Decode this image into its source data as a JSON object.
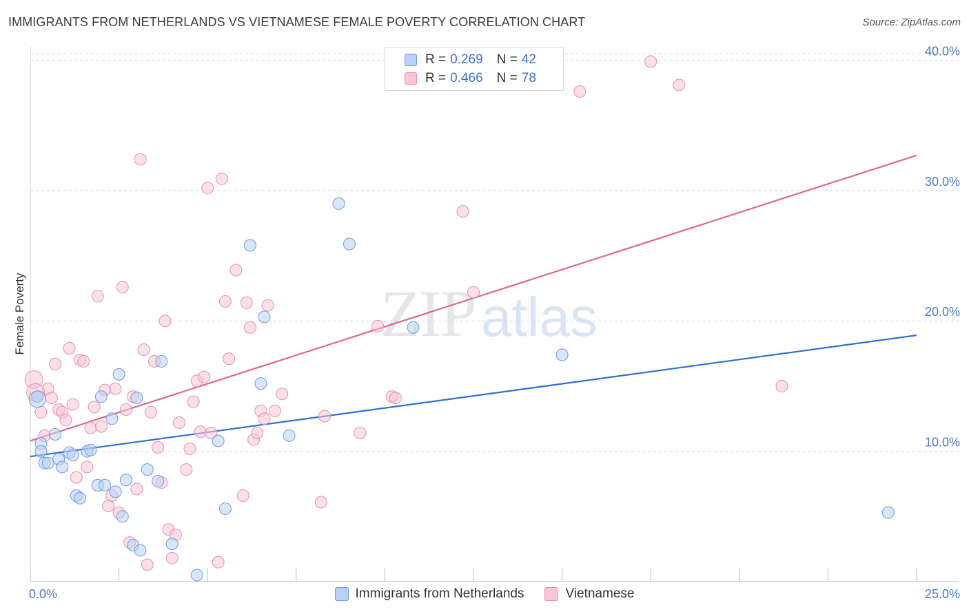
{
  "header": {
    "title": "IMMIGRANTS FROM NETHERLANDS VS VIETNAMESE FEMALE POVERTY CORRELATION CHART",
    "source": "Source: ZipAtlas.com"
  },
  "watermark": {
    "zip": "ZIP",
    "atlas": "atlas"
  },
  "legend": {
    "rows": [
      {
        "r_label": "R =",
        "r_value": "0.269",
        "n_label": "N =",
        "n_value": "42"
      },
      {
        "r_label": "R =",
        "r_value": "0.466",
        "n_label": "N =",
        "n_value": "78"
      }
    ]
  },
  "bottom_legend": {
    "series1": "Immigrants from Netherlands",
    "series2": "Vietnamese"
  },
  "colors": {
    "blue_fill": "#b9d1f2",
    "blue_stroke": "#6e9be0",
    "blue_line": "#2f6fd0",
    "pink_fill": "#f8c6d6",
    "pink_stroke": "#e58fab",
    "pink_line": "#e0668e",
    "grid": "#dcdcdc",
    "tick_text": "#4a78c8"
  },
  "chart_data": {
    "type": "scatter",
    "title": "IMMIGRANTS FROM NETHERLANDS VS VIETNAMESE FEMALE POVERTY CORRELATION CHART",
    "xlabel": "",
    "ylabel": "Female Poverty",
    "xlim": [
      0,
      25
    ],
    "ylim": [
      0,
      40.5
    ],
    "x_tick_labels": [
      "0.0%",
      "25.0%"
    ],
    "y_ticks": [
      10,
      20,
      30,
      40
    ],
    "y_tick_labels": [
      "10.0%",
      "20.0%",
      "30.0%",
      "40.0%"
    ],
    "grid": true,
    "legend_position": "top-center",
    "series": [
      {
        "name": "Immigrants from Netherlands",
        "r": 0.269,
        "n": 42,
        "trend": {
          "x": [
            0,
            25
          ],
          "y": [
            9.6,
            18.9
          ]
        },
        "points": [
          [
            0.2,
            14.2
          ],
          [
            0.3,
            10.6
          ],
          [
            0.3,
            10.0
          ],
          [
            0.4,
            9.1
          ],
          [
            0.5,
            9.1
          ],
          [
            0.7,
            11.3
          ],
          [
            0.8,
            9.4
          ],
          [
            0.9,
            8.8
          ],
          [
            1.1,
            9.9
          ],
          [
            1.2,
            9.7
          ],
          [
            1.3,
            6.6
          ],
          [
            1.4,
            6.4
          ],
          [
            1.6,
            10.0
          ],
          [
            1.7,
            10.1
          ],
          [
            1.9,
            7.4
          ],
          [
            2.0,
            14.2
          ],
          [
            2.1,
            7.4
          ],
          [
            2.3,
            12.5
          ],
          [
            2.4,
            6.9
          ],
          [
            2.5,
            15.9
          ],
          [
            2.6,
            5.0
          ],
          [
            2.7,
            7.8
          ],
          [
            2.9,
            2.8
          ],
          [
            3.0,
            14.1
          ],
          [
            3.1,
            2.4
          ],
          [
            3.3,
            8.6
          ],
          [
            3.6,
            7.7
          ],
          [
            3.7,
            16.9
          ],
          [
            4.0,
            2.9
          ],
          [
            4.7,
            0.5
          ],
          [
            5.3,
            10.8
          ],
          [
            5.5,
            5.6
          ],
          [
            6.2,
            25.8
          ],
          [
            6.5,
            15.2
          ],
          [
            6.6,
            20.3
          ],
          [
            7.3,
            11.2
          ],
          [
            8.7,
            29.0
          ],
          [
            9.0,
            25.9
          ],
          [
            10.8,
            19.5
          ],
          [
            15.0,
            17.4
          ],
          [
            24.2,
            5.3
          ],
          [
            0.2,
            14.0
          ]
        ]
      },
      {
        "name": "Vietnamese",
        "r": 0.466,
        "n": 78,
        "trend": {
          "x": [
            0,
            25
          ],
          "y": [
            10.8,
            32.7
          ]
        },
        "points": [
          [
            0.1,
            15.5
          ],
          [
            0.2,
            14.2
          ],
          [
            0.3,
            13.0
          ],
          [
            0.4,
            11.2
          ],
          [
            0.5,
            14.8
          ],
          [
            0.6,
            14.1
          ],
          [
            0.7,
            16.7
          ],
          [
            0.8,
            13.2
          ],
          [
            0.9,
            13.0
          ],
          [
            1.0,
            12.4
          ],
          [
            1.1,
            17.9
          ],
          [
            1.2,
            13.6
          ],
          [
            1.3,
            8.0
          ],
          [
            1.4,
            17.0
          ],
          [
            1.5,
            16.9
          ],
          [
            1.6,
            8.8
          ],
          [
            1.7,
            11.8
          ],
          [
            1.8,
            13.4
          ],
          [
            1.9,
            21.9
          ],
          [
            2.0,
            11.9
          ],
          [
            2.1,
            14.7
          ],
          [
            2.2,
            5.8
          ],
          [
            2.3,
            6.6
          ],
          [
            2.4,
            14.8
          ],
          [
            2.5,
            5.3
          ],
          [
            2.6,
            22.6
          ],
          [
            2.7,
            13.2
          ],
          [
            2.8,
            3.0
          ],
          [
            2.9,
            14.2
          ],
          [
            3.0,
            7.1
          ],
          [
            3.1,
            32.4
          ],
          [
            3.2,
            17.8
          ],
          [
            3.3,
            1.3
          ],
          [
            3.4,
            13.0
          ],
          [
            3.5,
            16.9
          ],
          [
            3.6,
            10.3
          ],
          [
            3.7,
            7.6
          ],
          [
            3.8,
            20.0
          ],
          [
            3.9,
            4.0
          ],
          [
            4.0,
            1.8
          ],
          [
            4.1,
            3.6
          ],
          [
            4.2,
            12.2
          ],
          [
            4.4,
            8.6
          ],
          [
            4.5,
            10.2
          ],
          [
            4.6,
            13.8
          ],
          [
            4.7,
            15.4
          ],
          [
            4.8,
            11.5
          ],
          [
            4.9,
            15.7
          ],
          [
            5.0,
            30.2
          ],
          [
            5.1,
            11.4
          ],
          [
            5.3,
            1.5
          ],
          [
            5.4,
            30.9
          ],
          [
            5.5,
            21.5
          ],
          [
            5.6,
            17.1
          ],
          [
            5.8,
            23.9
          ],
          [
            6.0,
            6.6
          ],
          [
            6.1,
            21.4
          ],
          [
            6.2,
            19.5
          ],
          [
            6.3,
            10.9
          ],
          [
            6.4,
            11.4
          ],
          [
            6.5,
            13.1
          ],
          [
            6.6,
            12.5
          ],
          [
            6.7,
            21.2
          ],
          [
            6.9,
            13.1
          ],
          [
            7.1,
            14.4
          ],
          [
            8.2,
            6.1
          ],
          [
            8.3,
            12.7
          ],
          [
            9.3,
            11.4
          ],
          [
            9.8,
            19.6
          ],
          [
            10.2,
            14.2
          ],
          [
            10.3,
            14.1
          ],
          [
            12.2,
            28.4
          ],
          [
            12.5,
            22.2
          ],
          [
            15.5,
            37.6
          ],
          [
            17.5,
            39.9
          ],
          [
            18.3,
            38.1
          ],
          [
            21.2,
            15.0
          ],
          [
            0.15,
            14.5
          ]
        ]
      }
    ]
  }
}
